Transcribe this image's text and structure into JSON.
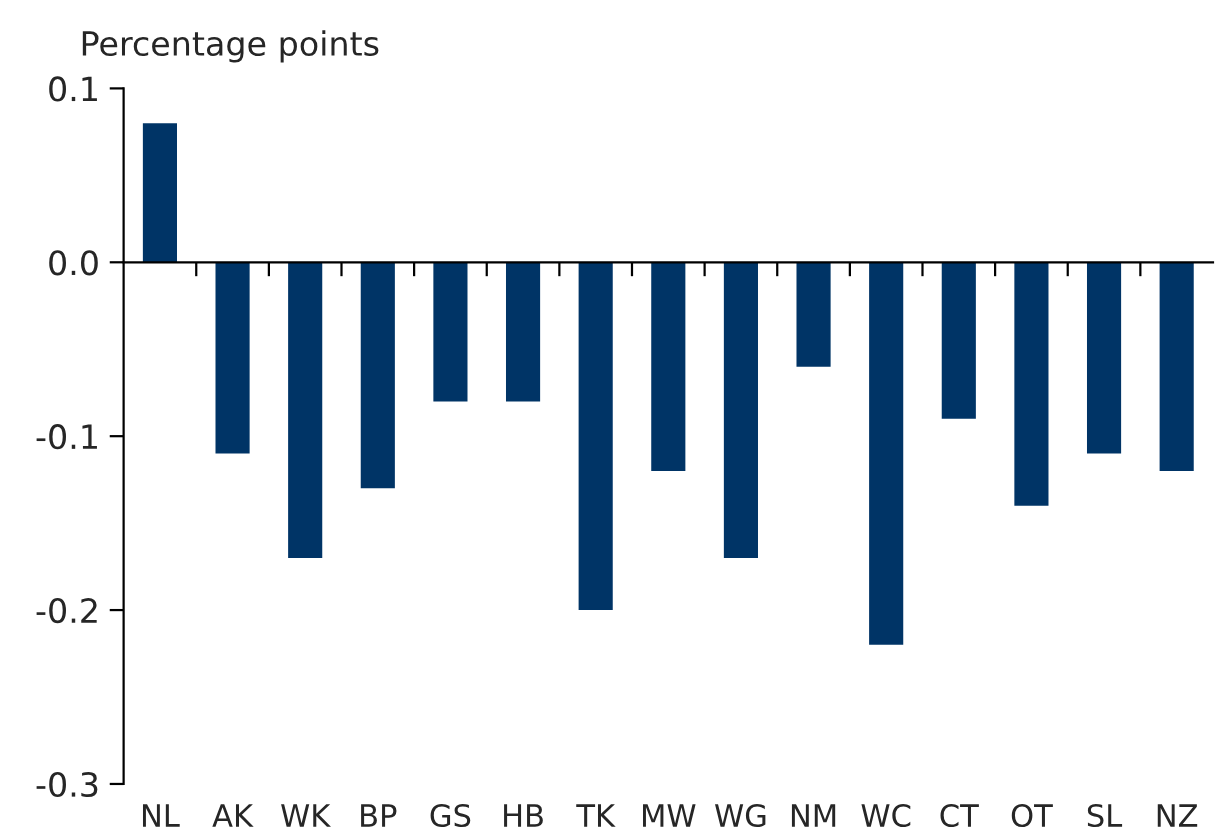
{
  "chart_data": {
    "type": "bar",
    "ylabel": "Percentage points",
    "categories": [
      "NL",
      "AK",
      "WK",
      "BP",
      "GS",
      "HB",
      "TK",
      "MW",
      "WG",
      "NM",
      "WC",
      "CT",
      "OT",
      "SL",
      "NZ"
    ],
    "values": [
      0.08,
      -0.11,
      -0.17,
      -0.13,
      -0.08,
      -0.08,
      -0.2,
      -0.12,
      -0.17,
      -0.06,
      -0.22,
      -0.09,
      -0.14,
      -0.11,
      -0.12
    ],
    "color": "#003466",
    "ylim": [
      -0.3,
      0.1
    ],
    "yticks": [
      {
        "value": -0.3,
        "label": "-0.3"
      },
      {
        "value": -0.2,
        "label": "-0.2"
      },
      {
        "value": -0.1,
        "label": "-0.1"
      },
      {
        "value": 0.0,
        "label": "0.0"
      },
      {
        "value": 0.1,
        "label": "0.1"
      }
    ],
    "legend": false
  }
}
